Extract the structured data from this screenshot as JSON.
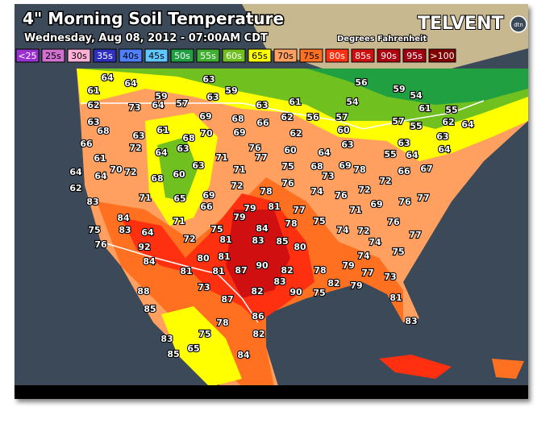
{
  "header": {
    "title": "4\" Morning Soil Temperature",
    "subtitle": "Wednesday, Aug 08, 2012 - 07:00AM CDT",
    "units": "Degrees Fahrenheit",
    "brand": "TELVENT",
    "brand_mark": "dtn"
  },
  "legend": [
    {
      "label": "<25",
      "color": "#9b30d0"
    },
    {
      "label": "25s",
      "color": "#d070d0"
    },
    {
      "label": "30s",
      "color": "#ffb0d8"
    },
    {
      "label": "35s",
      "color": "#3030c0"
    },
    {
      "label": "40s",
      "color": "#5080ff"
    },
    {
      "label": "45s",
      "color": "#60c8ff"
    },
    {
      "label": "50s",
      "color": "#20a040"
    },
    {
      "label": "55s",
      "color": "#40b030"
    },
    {
      "label": "60s",
      "color": "#70c020"
    },
    {
      "label": "65s",
      "color": "#ffff00"
    },
    {
      "label": "70s",
      "color": "#ffa060"
    },
    {
      "label": "75s",
      "color": "#ff7020"
    },
    {
      "label": "80s",
      "color": "#ff3010"
    },
    {
      "label": "85s",
      "color": "#d01010"
    },
    {
      "label": "90s",
      "color": "#b00010"
    },
    {
      "label": "95s",
      "color": "#a00010"
    },
    {
      "label": ">100",
      "color": "#800000"
    }
  ],
  "stations": [
    64,
    64,
    63,
    56,
    61,
    59,
    59,
    59,
    54,
    62,
    73,
    64,
    57,
    63,
    63,
    61,
    54,
    61,
    63,
    69,
    68,
    66,
    62,
    56,
    57,
    55,
    68,
    61,
    68,
    70,
    69,
    62,
    60,
    57,
    55,
    62,
    64,
    66,
    63,
    72,
    64,
    63,
    76,
    60,
    64,
    63,
    55,
    63,
    64,
    63,
    61,
    71,
    77,
    68,
    69,
    78,
    64,
    73,
    64,
    70,
    72,
    68,
    60,
    63,
    71,
    75,
    66,
    67,
    62,
    64,
    71,
    72,
    76,
    74,
    76,
    72,
    72,
    76,
    77,
    83,
    65,
    69,
    66,
    78,
    79,
    81,
    77,
    71,
    69,
    84,
    71,
    79,
    84,
    78,
    75,
    76,
    77,
    74,
    72,
    75,
    83,
    64,
    75,
    81,
    83,
    85,
    80,
    74,
    76,
    92,
    72,
    75,
    84,
    80,
    81,
    90,
    82,
    78,
    79,
    74,
    81,
    81,
    87,
    77,
    83,
    82,
    79,
    73,
    88,
    73,
    82,
    90,
    75,
    81,
    87,
    85,
    86,
    78,
    83,
    82,
    83,
    75,
    65,
    85,
    84
  ]
}
